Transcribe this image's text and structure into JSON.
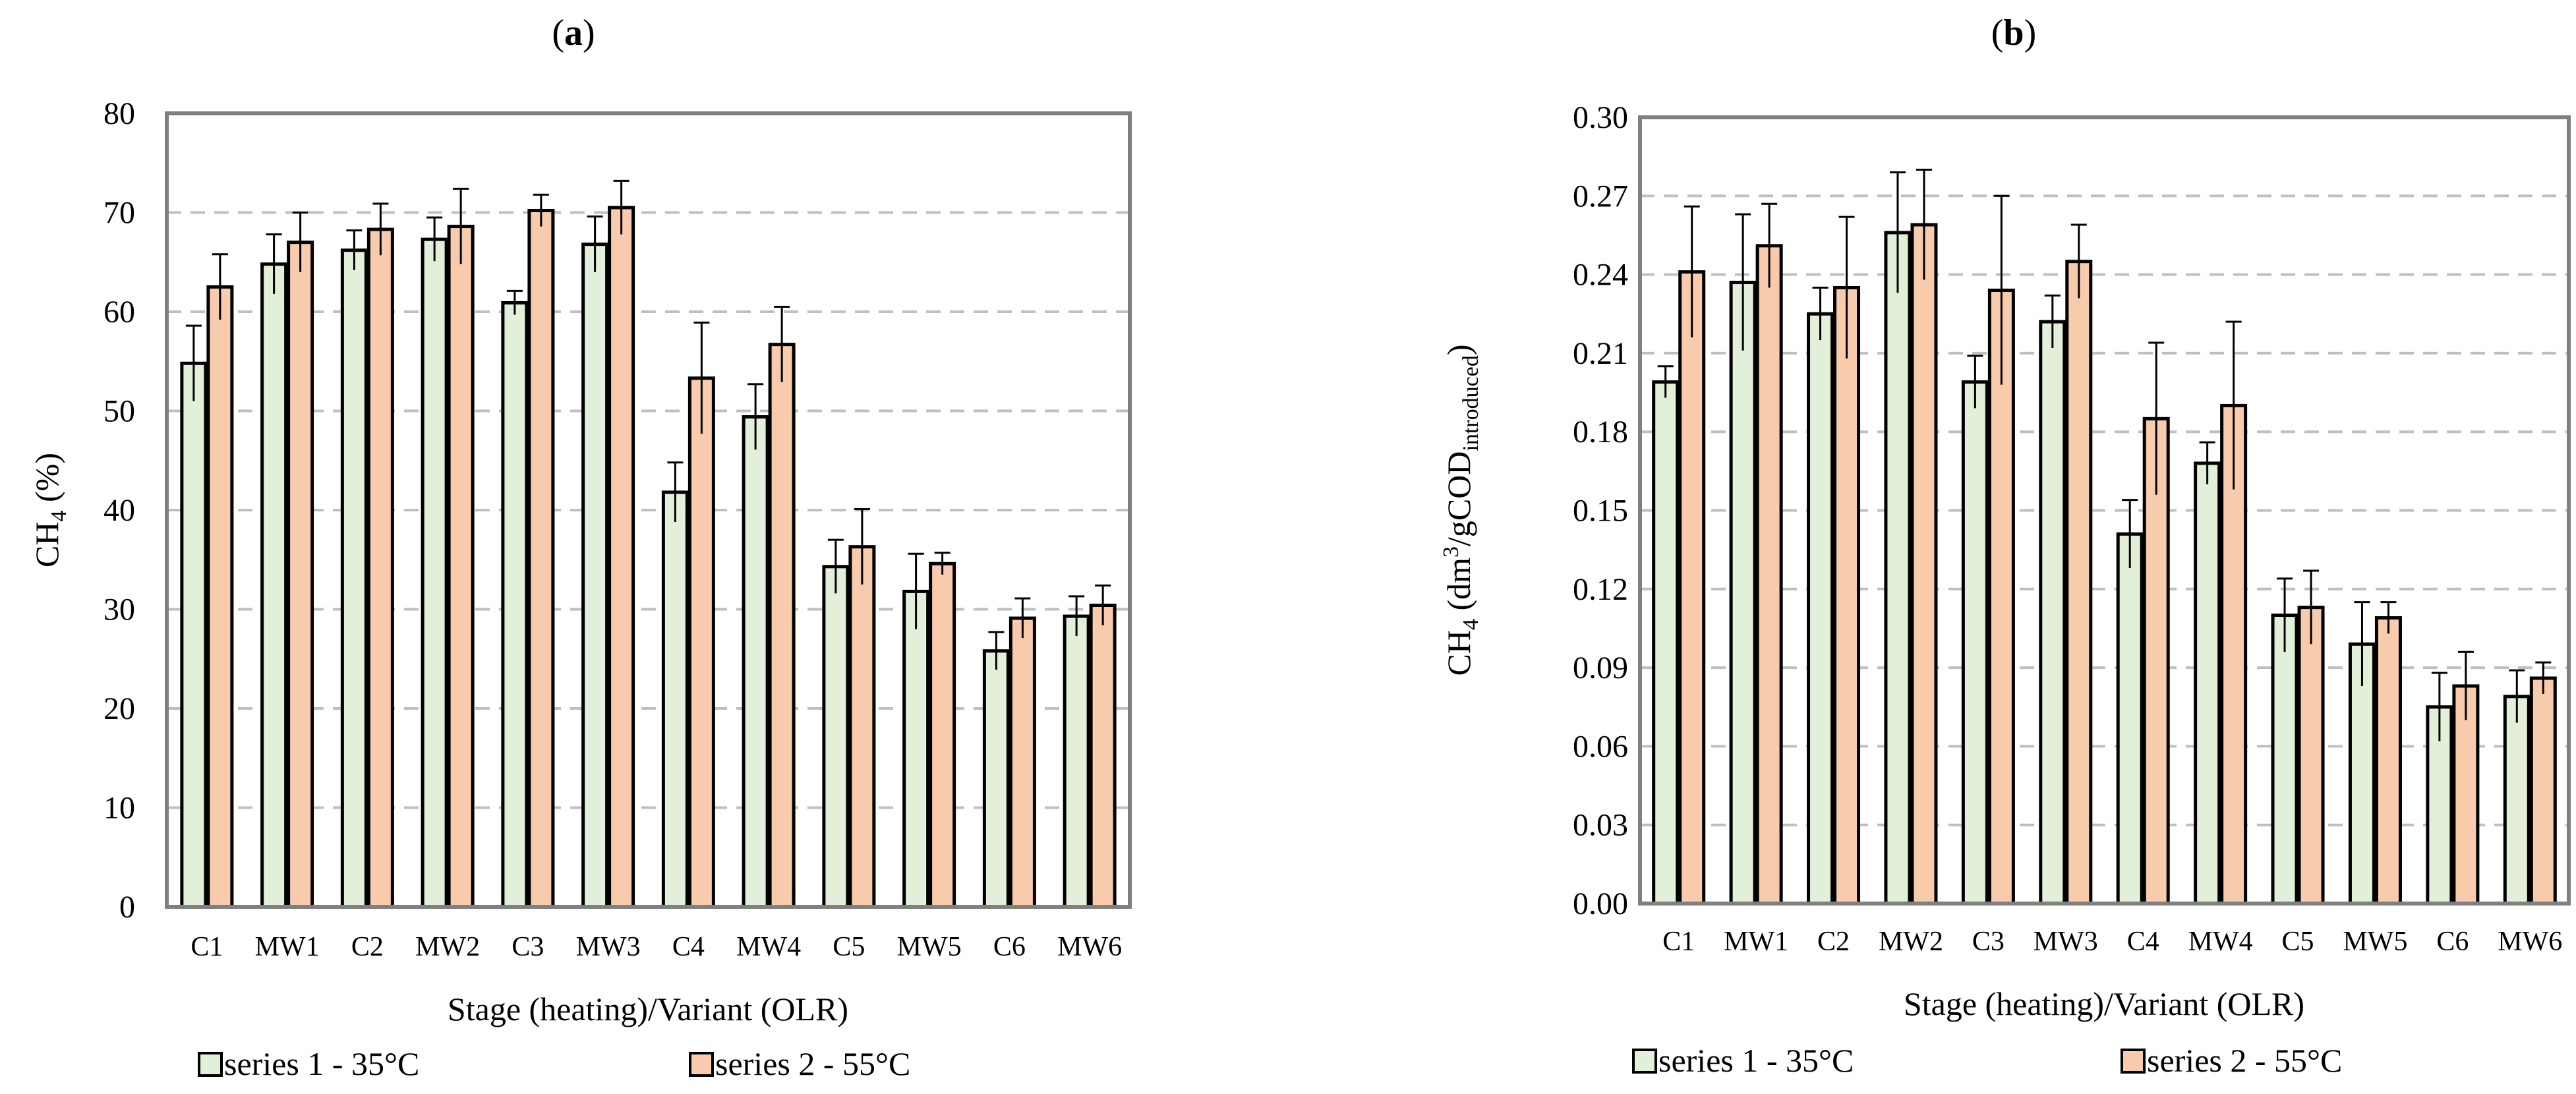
{
  "chart_data": [
    {
      "type": "bar",
      "panel_label": "a",
      "categories": [
        "C1",
        "MW1",
        "C2",
        "MW2",
        "C3",
        "MW3",
        "C4",
        "MW4",
        "C5",
        "MW5",
        "C6",
        "MW6"
      ],
      "series": [
        {
          "name": "series 1 - 35°C",
          "color": "#e2f0d9",
          "values": [
            54.8,
            64.8,
            66.2,
            67.3,
            60.9,
            66.8,
            41.8,
            49.4,
            34.3,
            31.8,
            25.8,
            29.3
          ],
          "errors": [
            3.8,
            3.0,
            2.0,
            2.2,
            1.2,
            2.8,
            3.0,
            3.3,
            2.7,
            3.8,
            1.9,
            2.0
          ]
        },
        {
          "name": "series 2 - 55°C",
          "color": "#f8cbad",
          "values": [
            62.5,
            67.0,
            68.3,
            68.6,
            70.2,
            70.5,
            53.3,
            56.7,
            36.3,
            34.6,
            29.1,
            30.4
          ],
          "errors": [
            3.3,
            3.0,
            2.6,
            3.8,
            1.6,
            2.7,
            5.6,
            3.8,
            3.8,
            1.1,
            2.0,
            2.0
          ]
        }
      ],
      "y_label_main": "CH",
      "y_label_sub": "4",
      "y_label_rest": " (%)",
      "xlabel": "Stage (heating)/Variant (OLR)",
      "ylim": [
        0,
        80
      ],
      "y_ticks": [
        "0",
        "10",
        "20",
        "30",
        "40",
        "50",
        "60",
        "70",
        "80"
      ],
      "grid": true,
      "legend_position": "bottom"
    },
    {
      "type": "bar",
      "panel_label": "b",
      "categories": [
        "C1",
        "MW1",
        "C2",
        "MW2",
        "C3",
        "MW3",
        "C4",
        "MW4",
        "C5",
        "MW5",
        "C6",
        "MW6"
      ],
      "series": [
        {
          "name": "series 1 - 35°C",
          "color": "#e2f0d9",
          "values": [
            0.199,
            0.237,
            0.225,
            0.256,
            0.199,
            0.222,
            0.141,
            0.168,
            0.11,
            0.099,
            0.075,
            0.079
          ],
          "errors": [
            0.006,
            0.026,
            0.01,
            0.023,
            0.01,
            0.01,
            0.013,
            0.008,
            0.014,
            0.016,
            0.013,
            0.01
          ]
        },
        {
          "name": "series 2 - 55°C",
          "color": "#f8cbad",
          "values": [
            0.241,
            0.251,
            0.235,
            0.259,
            0.234,
            0.245,
            0.185,
            0.19,
            0.113,
            0.109,
            0.083,
            0.086
          ],
          "errors": [
            0.025,
            0.016,
            0.027,
            0.021,
            0.036,
            0.014,
            0.029,
            0.032,
            0.014,
            0.006,
            0.013,
            0.006
          ]
        }
      ],
      "y_label_main": "CH",
      "y_label_sub": "4",
      "y_label_rest": " (dm",
      "y_label_sup": "3",
      "y_label_rest2": "/gCOD",
      "y_label_sub2": "introduced",
      "y_label_end": ")",
      "xlabel": "Stage (heating)/Variant (OLR)",
      "ylim": [
        0,
        0.3
      ],
      "y_ticks": [
        "0.00",
        "0.03",
        "0.06",
        "0.09",
        "0.12",
        "0.15",
        "0.18",
        "0.21",
        "0.24",
        "0.27",
        "0.30"
      ],
      "grid": true,
      "legend_position": "bottom"
    }
  ]
}
